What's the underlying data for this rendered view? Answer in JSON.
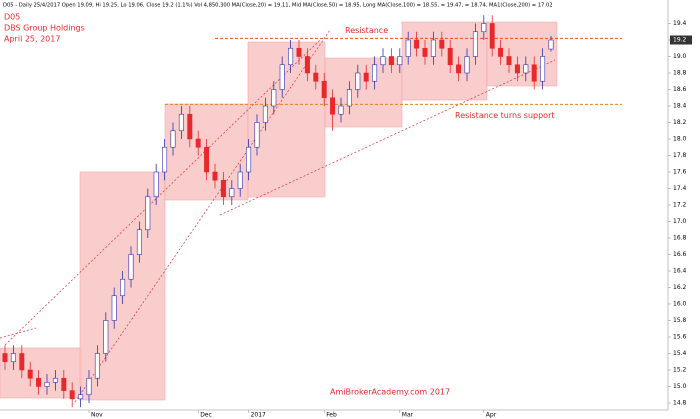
{
  "chart_data": {
    "type": "candlestick",
    "header": "D05 - Daily 25/4/2017 Open 19.09, Hi 19.25, Lo 19.06, Close 19.2 (1.1%) Vol 4,850,300 MA(Close,20) = 19.11, Mid MA(Close,50) = 18.95, Long MA(Close,100) = 18.55, = 19.47, = 18.74, MA1(Close,200) = 17.02",
    "symbol": "D05",
    "title": "DBS Group Holdings",
    "subtitle": "April 25, 2017",
    "watermark": "AmiBrokerAcademy.com  2017",
    "up_color": "#ffffff",
    "down_color": "#e8292b",
    "outline_color": "#3333aa",
    "categories": [
      null,
      null,
      null,
      null,
      null,
      null,
      null,
      null,
      null,
      null,
      "Nov",
      null,
      null,
      null,
      null,
      null,
      null,
      null,
      null,
      null,
      null,
      null,
      null,
      "Dec",
      null,
      null,
      null,
      null,
      null,
      "2017",
      null,
      null,
      null,
      null,
      null,
      null,
      null,
      null,
      "Feb",
      null,
      null,
      null,
      null,
      null,
      null,
      null,
      null,
      "Mar",
      null,
      null,
      null,
      null,
      null,
      null,
      null,
      null,
      null,
      "Apr",
      null,
      null,
      null,
      null,
      null,
      null,
      null,
      null
    ],
    "ohlc": [
      [
        15.4,
        15.5,
        15.2,
        15.3
      ],
      [
        15.3,
        15.5,
        15.2,
        15.4
      ],
      [
        15.4,
        15.5,
        15.1,
        15.2
      ],
      [
        15.2,
        15.3,
        15.0,
        15.1
      ],
      [
        15.1,
        15.2,
        14.9,
        15.0
      ],
      [
        15.0,
        15.15,
        14.9,
        15.05
      ],
      [
        15.05,
        15.2,
        14.95,
        15.1
      ],
      [
        15.1,
        15.2,
        14.85,
        14.95
      ],
      [
        14.95,
        15.05,
        14.75,
        14.85
      ],
      [
        14.85,
        15.0,
        14.75,
        14.9
      ],
      [
        14.9,
        15.2,
        14.8,
        15.1
      ],
      [
        15.1,
        15.5,
        15.0,
        15.4
      ],
      [
        15.4,
        15.9,
        15.3,
        15.8
      ],
      [
        15.8,
        16.2,
        15.7,
        16.1
      ],
      [
        16.1,
        16.4,
        16.0,
        16.3
      ],
      [
        16.3,
        16.7,
        16.2,
        16.6
      ],
      [
        16.6,
        17.0,
        16.5,
        16.9
      ],
      [
        16.9,
        17.4,
        16.8,
        17.3
      ],
      [
        17.3,
        17.7,
        17.2,
        17.6
      ],
      [
        17.6,
        18.0,
        17.5,
        17.9
      ],
      [
        17.9,
        18.2,
        17.8,
        18.1
      ],
      [
        18.1,
        18.4,
        18.0,
        18.3
      ],
      [
        18.3,
        18.4,
        17.9,
        18.0
      ],
      [
        18.0,
        18.1,
        17.8,
        17.9
      ],
      [
        17.9,
        18.0,
        17.5,
        17.6
      ],
      [
        17.6,
        17.7,
        17.4,
        17.5
      ],
      [
        17.5,
        17.6,
        17.2,
        17.3
      ],
      [
        17.3,
        17.5,
        17.2,
        17.4
      ],
      [
        17.4,
        17.7,
        17.3,
        17.6
      ],
      [
        17.6,
        18.0,
        17.5,
        17.9
      ],
      [
        17.9,
        18.3,
        17.8,
        18.2
      ],
      [
        18.2,
        18.5,
        18.1,
        18.4
      ],
      [
        18.4,
        18.7,
        18.3,
        18.6
      ],
      [
        18.6,
        19.0,
        18.5,
        18.9
      ],
      [
        18.9,
        19.2,
        18.8,
        19.1
      ],
      [
        19.1,
        19.2,
        18.9,
        19.0
      ],
      [
        19.0,
        19.1,
        18.7,
        18.8
      ],
      [
        18.8,
        18.9,
        18.6,
        18.7
      ],
      [
        18.7,
        18.8,
        18.4,
        18.5
      ],
      [
        18.5,
        18.6,
        18.1,
        18.3
      ],
      [
        18.3,
        18.5,
        18.2,
        18.4
      ],
      [
        18.4,
        18.7,
        18.3,
        18.6
      ],
      [
        18.6,
        18.9,
        18.5,
        18.8
      ],
      [
        18.8,
        18.9,
        18.6,
        18.7
      ],
      [
        18.7,
        19.0,
        18.6,
        18.9
      ],
      [
        18.9,
        19.1,
        18.8,
        19.0
      ],
      [
        19.0,
        19.1,
        18.8,
        18.9
      ],
      [
        18.9,
        19.1,
        18.8,
        19.0
      ],
      [
        19.0,
        19.3,
        18.9,
        19.2
      ],
      [
        19.2,
        19.3,
        19.0,
        19.1
      ],
      [
        19.1,
        19.2,
        18.9,
        19.0
      ],
      [
        19.0,
        19.3,
        18.9,
        19.2
      ],
      [
        19.2,
        19.3,
        19.0,
        19.1
      ],
      [
        19.1,
        19.2,
        18.8,
        18.9
      ],
      [
        18.9,
        19.0,
        18.7,
        18.8
      ],
      [
        18.8,
        19.1,
        18.7,
        19.0
      ],
      [
        19.0,
        19.4,
        18.9,
        19.3
      ],
      [
        19.3,
        19.5,
        19.2,
        19.4
      ],
      [
        19.4,
        19.5,
        19.0,
        19.1
      ],
      [
        19.1,
        19.2,
        18.9,
        19.0
      ],
      [
        19.0,
        19.1,
        18.8,
        18.9
      ],
      [
        18.9,
        19.0,
        18.7,
        18.8
      ],
      [
        18.8,
        19.0,
        18.7,
        18.9
      ],
      [
        18.9,
        19.0,
        18.6,
        18.7
      ],
      [
        18.7,
        19.1,
        18.6,
        19.0
      ],
      [
        19.09,
        19.25,
        19.06,
        19.2
      ]
    ],
    "levels": [
      {
        "label": "Resistance",
        "value": 19.22,
        "color": "#e8501a"
      },
      {
        "label": "Resistance turns support",
        "value": 18.42,
        "color": "#e8801a"
      }
    ],
    "ylim": [
      14.715,
      19.503
    ],
    "yticks": [
      14.8,
      {
        "value": 15,
        "label": "15.0"
      },
      15.2,
      15.4,
      15.6,
      15.8,
      {
        "value": 16,
        "label": "16.0"
      },
      16.2,
      16.4,
      16.6,
      16.8,
      {
        "value": 17,
        "label": "17.0"
      },
      17.2,
      17.4,
      17.6,
      17.8,
      {
        "value": 18,
        "label": "18.0"
      },
      18.2,
      18.4,
      18.6,
      18.8,
      {
        "value": 19,
        "label": "19.0"
      },
      19.2,
      19.4
    ],
    "grid": false
  }
}
